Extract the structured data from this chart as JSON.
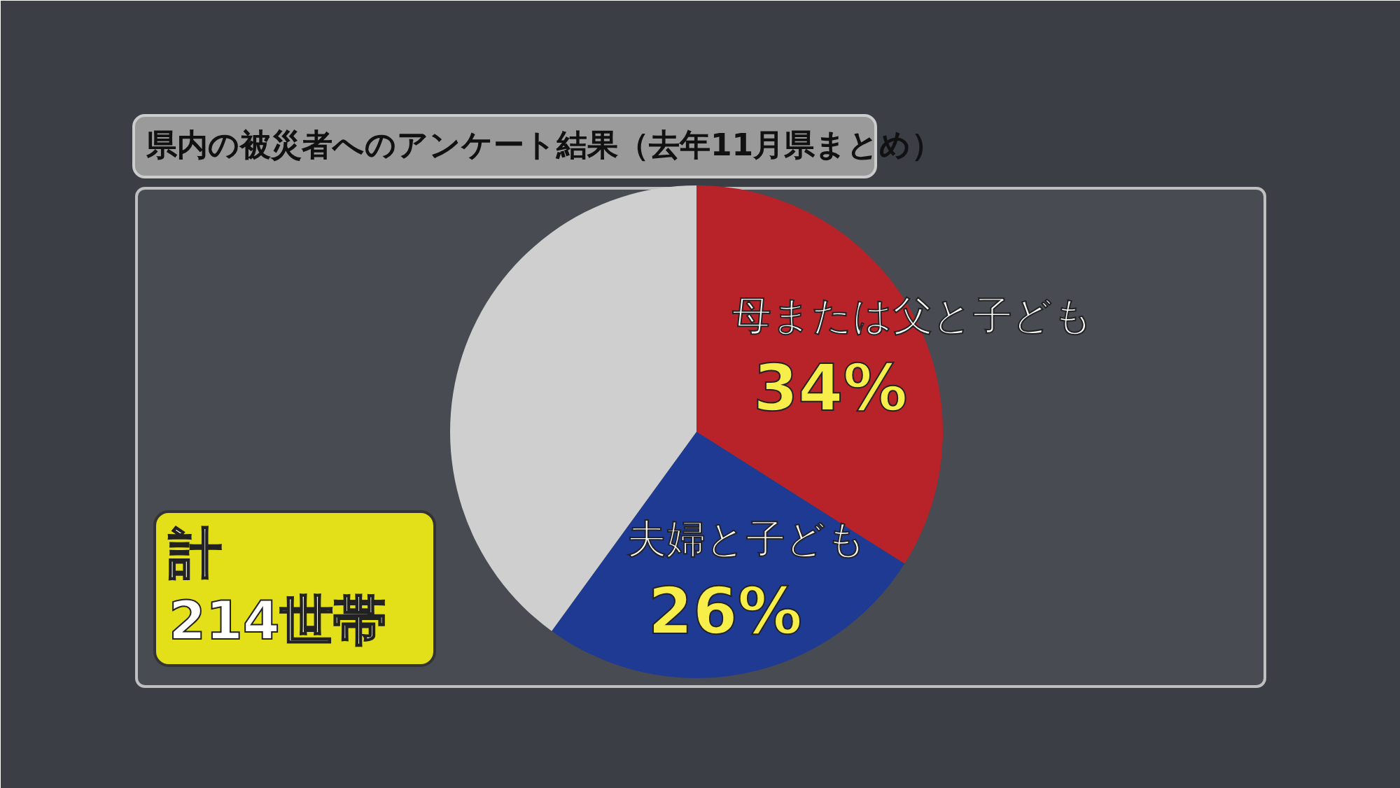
{
  "chart_data": {
    "type": "pie",
    "title": "県内の被災者へのアンケート結果（去年11月県まとめ）",
    "categories": [
      "母または父と子ども",
      "夫婦と子ども",
      null
    ],
    "values": [
      34,
      26,
      40
    ],
    "colors": [
      "#b8232a",
      "#1f3a93",
      "#cfcfcf"
    ],
    "value_labels": [
      "34%",
      "26%",
      null
    ],
    "annotations": [
      "計\n214世帯"
    ]
  }
}
